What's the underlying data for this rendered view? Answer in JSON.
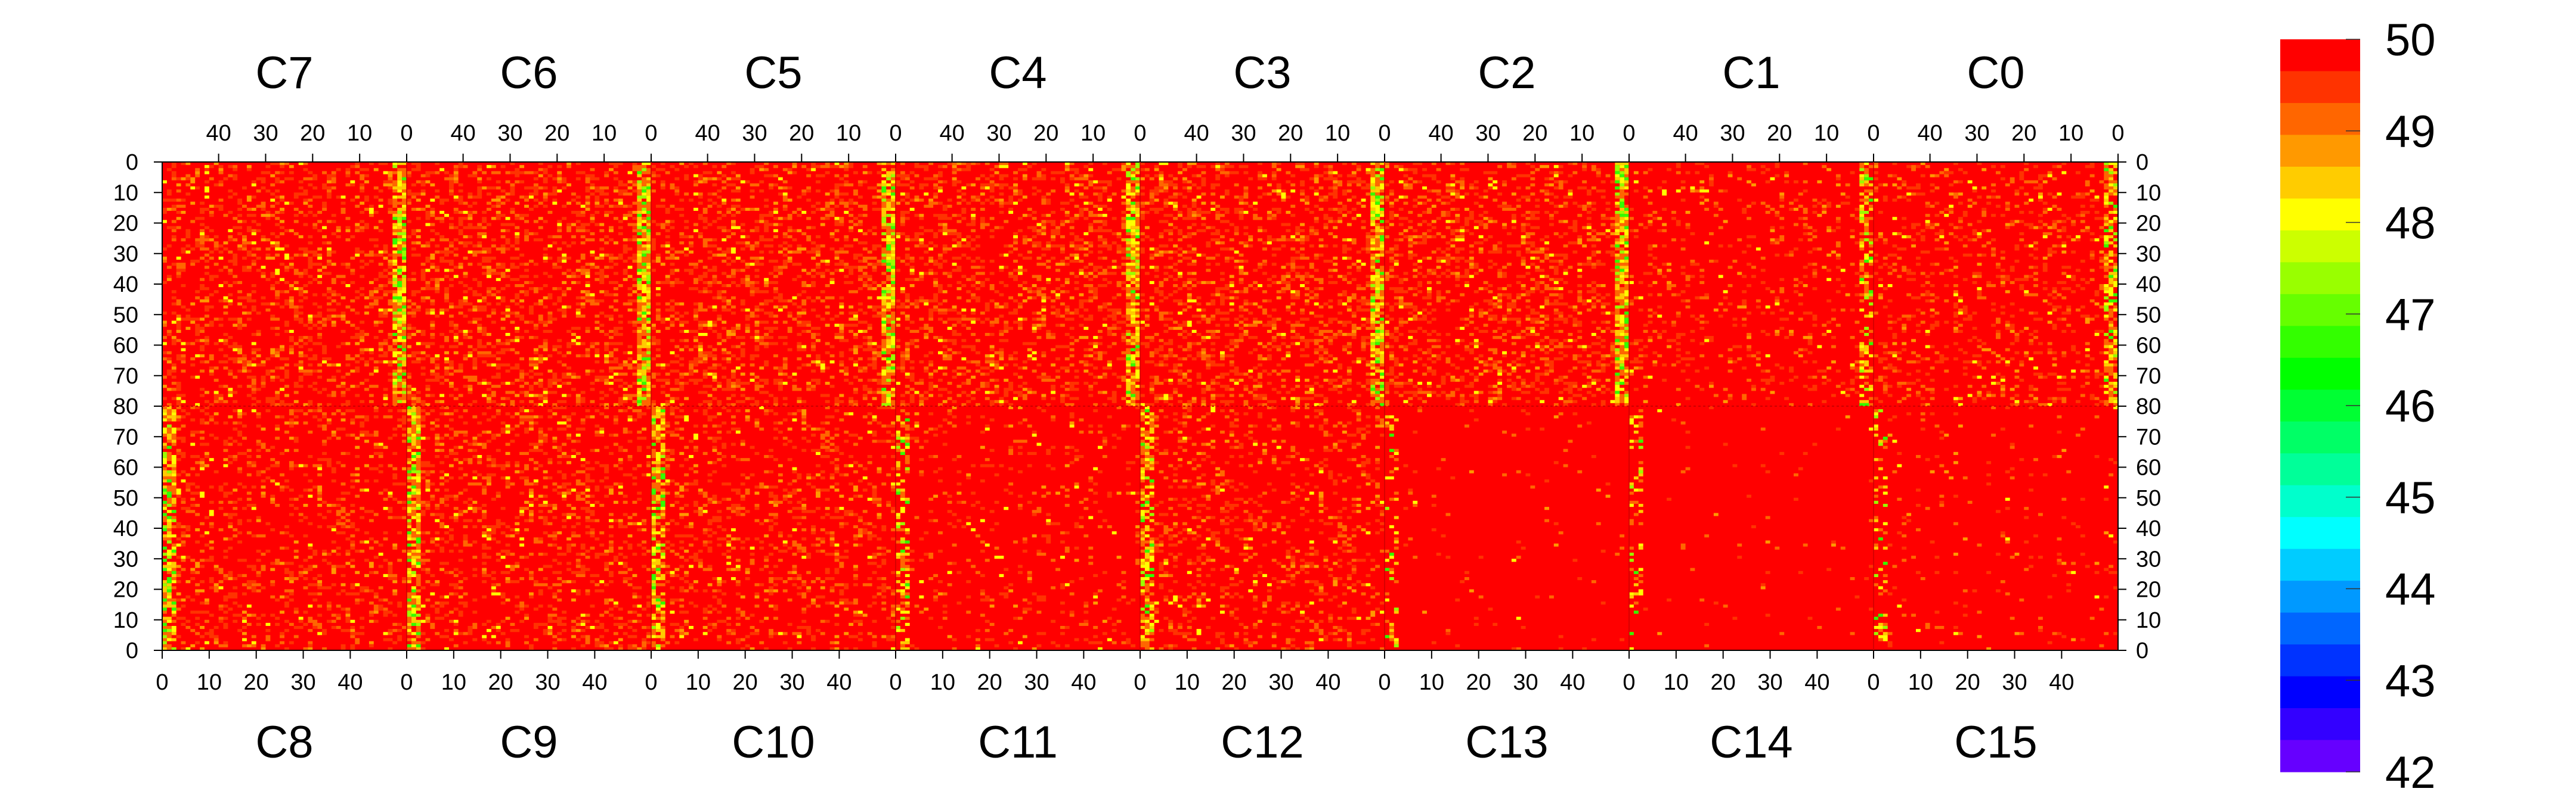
{
  "chart_data": {
    "type": "heatmap",
    "title": "",
    "xlabel": "",
    "ylabel": "",
    "z_range": [
      42,
      50
    ],
    "colorbar_ticks": [
      "50",
      "49",
      "48",
      "47",
      "46",
      "45",
      "44",
      "43",
      "42"
    ],
    "colorbar_colors": [
      "#ff0000",
      "#ff3300",
      "#ff6600",
      "#ff9900",
      "#ffcc00",
      "#ffff00",
      "#ccff00",
      "#99ff00",
      "#66ff00",
      "#33ff00",
      "#00ff00",
      "#00ff33",
      "#00ff66",
      "#00ff99",
      "#00ffcc",
      "#00ffff",
      "#00ccff",
      "#0099ff",
      "#0066ff",
      "#0033ff",
      "#0000ff",
      "#3300ff",
      "#6600ff"
    ],
    "top_chips": [
      "C7",
      "C6",
      "C5",
      "C4",
      "C3",
      "C2",
      "C1",
      "C0"
    ],
    "bottom_chips": [
      "C8",
      "C9",
      "C10",
      "C11",
      "C12",
      "C13",
      "C14",
      "C15"
    ],
    "top_col_ticks": [
      "40",
      "30",
      "20",
      "10",
      "0"
    ],
    "bottom_col_ticks": [
      "0",
      "10",
      "20",
      "30",
      "40"
    ],
    "y_ticks_top_half": [
      "0",
      "10",
      "20",
      "30",
      "40",
      "50",
      "60",
      "70",
      "80"
    ],
    "y_ticks_bottom_half": [
      "70",
      "60",
      "50",
      "40",
      "30",
      "20",
      "10",
      "0"
    ],
    "cols_per_chip": 52,
    "rows_per_half": 80,
    "chip_noise_density": [
      0.28,
      0.32,
      0.3,
      0.3,
      0.3,
      0.3,
      0.14,
      0.2,
      0.22,
      0.26,
      0.22,
      0.1,
      0.2,
      0.02,
      0.02,
      0.04
    ],
    "chip_stripe_side": [
      "right",
      "right",
      "right",
      "right",
      "right",
      "right",
      "right",
      "right",
      "left",
      "left",
      "left",
      "left",
      "left",
      "left",
      "left",
      "left"
    ]
  }
}
